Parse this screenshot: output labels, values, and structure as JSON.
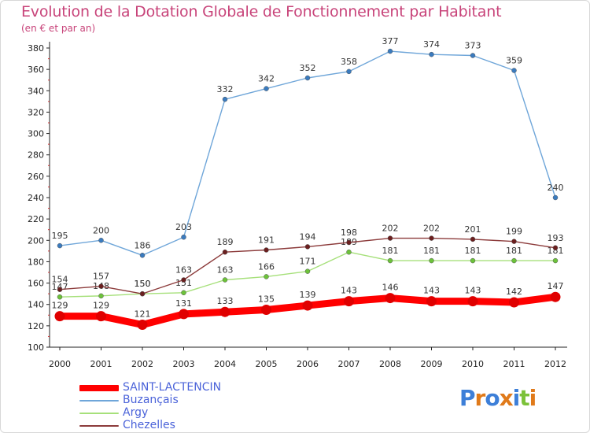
{
  "chart_data": {
    "type": "line",
    "title": "Evolution de la Dotation Globale de Fonctionnement par Habitant",
    "subtitle": "(en € et par an)",
    "xlabel": "",
    "ylabel": "",
    "categories": [
      "2000",
      "2001",
      "2002",
      "2003",
      "2004",
      "2005",
      "2006",
      "2007",
      "2008",
      "2009",
      "2010",
      "2011",
      "2012"
    ],
    "ylim": [
      100,
      380
    ],
    "yticks": [
      100,
      120,
      140,
      160,
      180,
      200,
      220,
      240,
      260,
      280,
      300,
      320,
      340,
      360,
      380
    ],
    "grid": false,
    "legend_position": "bottom-left",
    "series": [
      {
        "name": "SAINT-LACTENCIN",
        "color": "#ff0000",
        "marker_color": "#e00000",
        "emphasis": true,
        "values": [
          129,
          129,
          121,
          131,
          133,
          135,
          139,
          143,
          146,
          143,
          143,
          142,
          147
        ]
      },
      {
        "name": "Buzançais",
        "color": "#6fa6d9",
        "marker_color": "#3a7bbf",
        "emphasis": false,
        "values": [
          195,
          200,
          186,
          203,
          332,
          342,
          352,
          358,
          377,
          374,
          373,
          359,
          240
        ]
      },
      {
        "name": "Argy",
        "color": "#a6e07a",
        "marker_color": "#6cc23a",
        "emphasis": false,
        "values": [
          147,
          148,
          150,
          151,
          163,
          166,
          171,
          189,
          181,
          181,
          181,
          181,
          181
        ]
      },
      {
        "name": "Chezelles",
        "color": "#8c3b3b",
        "marker_color": "#6b1f1f",
        "emphasis": false,
        "values": [
          154,
          157,
          150,
          163,
          189,
          191,
          194,
          198,
          202,
          202,
          201,
          199,
          193
        ]
      }
    ]
  },
  "logo": {
    "text": "Proxiti",
    "letters": [
      "P",
      "r",
      "o",
      "x",
      "i",
      "t",
      "i"
    ],
    "colors": [
      "#3d7fd8",
      "#e07a1a",
      "#3d7fd8",
      "#e07a1a",
      "#3d7fd8",
      "#7cc23a",
      "#e07a1a"
    ]
  }
}
